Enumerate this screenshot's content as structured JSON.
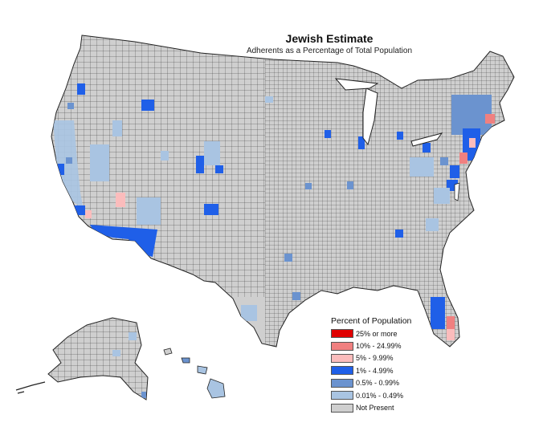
{
  "title": "Jewish Estimate",
  "subtitle": "Adherents as a Percentage of Total Population",
  "legend": {
    "title": "Percent of Population",
    "items": [
      {
        "label": "25% or more",
        "color": "#e00000"
      },
      {
        "label": "10% - 24.99%",
        "color": "#f08080"
      },
      {
        "label": "5% - 9.99%",
        "color": "#fbbcbc"
      },
      {
        "label": "1% - 4.99%",
        "color": "#1f5fe8"
      },
      {
        "label": "0.5% - 0.99%",
        "color": "#6b93cf"
      },
      {
        "label": "0.01% - 0.49%",
        "color": "#a9c4e2"
      },
      {
        "label": "Not Present",
        "color": "#cfcfcf"
      }
    ]
  },
  "colors": {
    "county_border": "#222222",
    "not_present": "#cfcfcf"
  }
}
